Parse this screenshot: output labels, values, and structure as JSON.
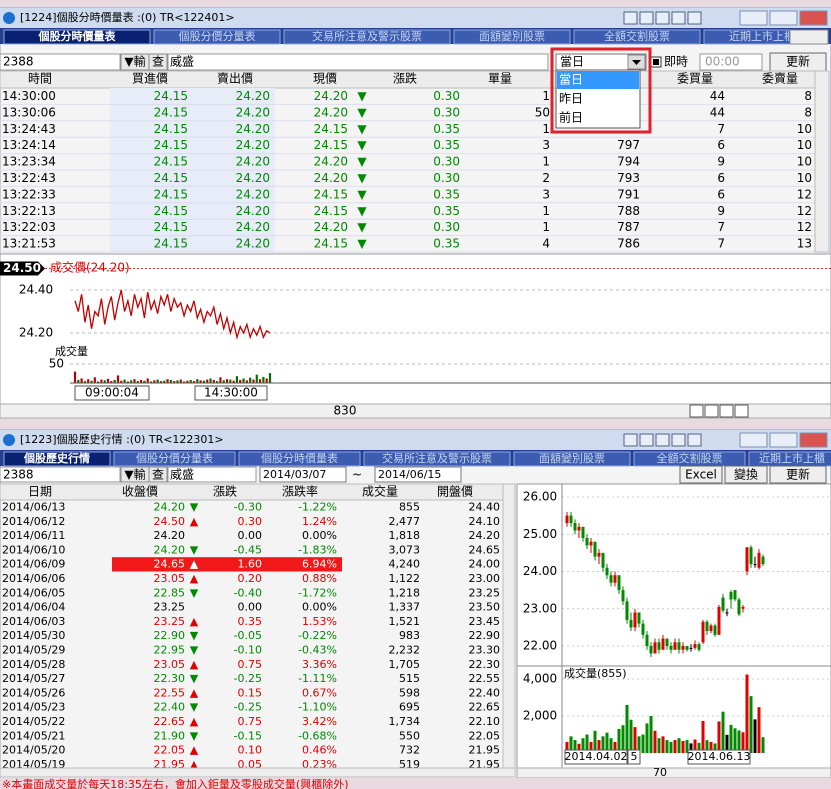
{
  "window1": {
    "title": "[1224]個股分時價量表 :(0) TR<122401>",
    "tabs": [
      "個股分時價量表",
      "個股分價分量表",
      "交易所注意及警示股票",
      "面額變別股票",
      "全額交割股票",
      "近期上市上櫃"
    ],
    "toolbar": {
      "code": "2388",
      "input_button": "▼輸",
      "query_button": "查",
      "name": "威盛",
      "period": "當日",
      "realtime_label": "即時",
      "time": "00:00",
      "refresh_button": "更新"
    },
    "period_options": [
      "當日",
      "昨日",
      "前日"
    ],
    "table": {
      "columns": [
        "時間",
        "買進價",
        "賣出價",
        "現價",
        "漲跌",
        "單量",
        "委買量",
        "委賣量"
      ],
      "rows": [
        [
          "14:30:00",
          "24.15",
          "24.20",
          "24.20",
          "▼",
          "0.30",
          "1",
          null,
          "44",
          "8"
        ],
        [
          "13:30:06",
          "24.15",
          "24.20",
          "24.20",
          "▼",
          "0.30",
          "50",
          null,
          "44",
          "8"
        ],
        [
          "13:24:43",
          "24.15",
          "24.20",
          "24.15",
          "▼",
          "0.35",
          "1",
          null,
          "7",
          "10"
        ],
        [
          "13:24:14",
          "24.15",
          "24.20",
          "24.15",
          "▼",
          "0.35",
          "3",
          "797",
          "6",
          "10"
        ],
        [
          "13:23:34",
          "24.15",
          "24.20",
          "24.20",
          "▼",
          "0.30",
          "1",
          "794",
          "9",
          "10"
        ],
        [
          "13:22:43",
          "24.15",
          "24.20",
          "24.20",
          "▼",
          "0.30",
          "2",
          "793",
          "6",
          "10"
        ],
        [
          "13:22:33",
          "24.15",
          "24.20",
          "24.15",
          "▼",
          "0.35",
          "3",
          "791",
          "6",
          "12"
        ],
        [
          "13:22:13",
          "24.15",
          "24.20",
          "24.15",
          "▼",
          "0.35",
          "1",
          "788",
          "9",
          "12"
        ],
        [
          "13:22:03",
          "24.15",
          "24.20",
          "24.20",
          "▼",
          "0.30",
          "1",
          "787",
          "7",
          "12"
        ],
        [
          "13:21:53",
          "24.15",
          "24.20",
          "24.15",
          "▼",
          "0.35",
          "4",
          "786",
          "7",
          "13"
        ]
      ]
    },
    "chart": {
      "price_tag": {
        "value": 24.5,
        "label": "24.50"
      },
      "price_label": "成交價(24.20)",
      "price_ticks": [
        {
          "value": 24.4,
          "label": "24.40"
        },
        {
          "value": 24.2,
          "label": "24.20"
        }
      ],
      "volume_ticks": [
        50
      ],
      "volume_label": "成交量",
      "x_labels": [
        "09:00:04",
        "14:30:00"
      ],
      "prices": [
        24.35,
        24.3,
        24.38,
        24.25,
        24.33,
        24.22,
        24.3,
        24.28,
        24.36,
        24.24,
        24.32,
        24.37,
        24.26,
        24.34,
        24.4,
        24.3,
        24.35,
        24.28,
        24.38,
        24.32,
        24.36,
        24.27,
        24.39,
        24.31,
        24.35,
        24.29,
        24.37,
        24.33,
        24.38,
        24.3,
        24.36,
        24.32,
        24.34,
        24.28,
        24.33,
        24.3,
        24.35,
        24.27,
        24.31,
        24.25,
        24.3,
        24.28,
        24.32,
        24.24,
        24.29,
        24.22,
        24.27,
        24.2,
        24.25,
        24.18,
        24.23,
        24.2,
        24.24,
        24.18,
        24.22,
        24.19,
        24.23,
        24.18,
        24.21,
        24.2
      ],
      "volumes": [
        30,
        8,
        12,
        5,
        10,
        6,
        15,
        4,
        9,
        7,
        11,
        5,
        8,
        20,
        6,
        9,
        4,
        7,
        10,
        5,
        8,
        6,
        12,
        4,
        7,
        9,
        5,
        6,
        10,
        8,
        5,
        7,
        9,
        4,
        6,
        8,
        5,
        10,
        7,
        6,
        9,
        12,
        8,
        5,
        15,
        7,
        10,
        9,
        6,
        18,
        8,
        12,
        7,
        14,
        9,
        22,
        10,
        16,
        12,
        26
      ]
    },
    "status": "830"
  },
  "window2": {
    "title": "[1223]個股歷史行情 :(0) TR<122301>",
    "tabs": [
      "個股歷史行情",
      "個股分價分量表",
      "個股分時價量表",
      "交易所注意及警示股票",
      "面額變別股票",
      "全額交割股票",
      "近期上市上櫃"
    ],
    "toolbar": {
      "code": "2388",
      "input_button": "▼輸",
      "query_button": "查",
      "name": "威盛",
      "start_date": "2014/03/07",
      "date_separator": "~",
      "end_date": "2014/06/15",
      "buttons": [
        "Excel",
        "變換",
        "更新"
      ]
    },
    "table": {
      "columns": [
        "日期",
        "收盤價",
        "漲跌",
        "漲跌率",
        "成交量",
        "開盤價"
      ],
      "selected_row": 4,
      "rows": [
        [
          "2014/06/13",
          "24.20",
          "▼",
          "-0.30",
          "-1.22%",
          "855",
          "24.40"
        ],
        [
          "2014/06/12",
          "24.50",
          "▲",
          "0.30",
          "1.24%",
          "2,477",
          "24.10"
        ],
        [
          "2014/06/11",
          "24.20",
          null,
          "0.00",
          "0.00%",
          "1,818",
          "24.20"
        ],
        [
          "2014/06/10",
          "24.20",
          "▼",
          "-0.45",
          "-1.83%",
          "3,073",
          "24.65"
        ],
        [
          "2014/06/09",
          "24.65",
          "▲",
          "1.60",
          "6.94%",
          "4,240",
          "24.00"
        ],
        [
          "2014/06/06",
          "23.05",
          "▲",
          "0.20",
          "0.88%",
          "1,122",
          "23.00"
        ],
        [
          "2014/06/05",
          "22.85",
          "▼",
          "-0.40",
          "-1.72%",
          "1,218",
          "23.25"
        ],
        [
          "2014/06/04",
          "23.25",
          null,
          "0.00",
          "0.00%",
          "1,337",
          "23.50"
        ],
        [
          "2014/06/03",
          "23.25",
          "▲",
          "0.35",
          "1.53%",
          "1,521",
          "23.45"
        ],
        [
          "2014/05/30",
          "22.90",
          "▼",
          "-0.05",
          "-0.22%",
          "983",
          "22.90"
        ],
        [
          "2014/05/29",
          "22.95",
          "▼",
          "-0.10",
          "-0.43%",
          "2,232",
          "23.30"
        ],
        [
          "2014/05/28",
          "23.05",
          "▲",
          "0.75",
          "3.36%",
          "1,705",
          "22.30"
        ],
        [
          "2014/05/27",
          "22.30",
          "▼",
          "-0.25",
          "-1.11%",
          "515",
          "22.55"
        ],
        [
          "2014/05/26",
          "22.55",
          "▲",
          "0.15",
          "0.67%",
          "598",
          "22.40"
        ],
        [
          "2014/05/23",
          "22.40",
          "▼",
          "-0.25",
          "-1.10%",
          "695",
          "22.65"
        ],
        [
          "2014/05/22",
          "22.65",
          "▲",
          "0.75",
          "3.42%",
          "1,734",
          "22.10"
        ],
        [
          "2014/05/21",
          "21.90",
          "▼",
          "-0.15",
          "-0.68%",
          "550",
          "22.05"
        ],
        [
          "2014/05/20",
          "22.05",
          "▲",
          "0.10",
          "0.46%",
          "732",
          "21.95"
        ],
        [
          "2014/05/19",
          "21.95",
          "▲",
          "0.05",
          "0.23%",
          "519",
          "21.95"
        ]
      ]
    },
    "chart": {
      "price_ticks": [
        {
          "value": 26,
          "label": "26.00"
        },
        {
          "value": 25,
          "label": "25.00"
        },
        {
          "value": 24,
          "label": "24.00"
        },
        {
          "value": 23,
          "label": "23.00"
        },
        {
          "value": 22,
          "label": "22.00"
        }
      ],
      "volume_label": "成交量(855)",
      "volume_ticks": [
        {
          "value": 4000,
          "label": "4,000"
        },
        {
          "value": 2000,
          "label": "2,000"
        }
      ],
      "x_labels": [
        "2014.04.02",
        "5",
        "2014.06.13"
      ],
      "candles": [
        [
          25.3,
          25.6,
          25.2,
          25.5
        ],
        [
          25.5,
          25.6,
          25.2,
          25.3
        ],
        [
          25.3,
          25.4,
          25.0,
          25.1
        ],
        [
          25.1,
          25.3,
          24.9,
          25.2
        ],
        [
          25.2,
          25.2,
          24.8,
          24.9
        ],
        [
          24.9,
          25.0,
          24.6,
          24.7
        ],
        [
          24.7,
          24.9,
          24.5,
          24.8
        ],
        [
          24.8,
          24.8,
          24.3,
          24.4
        ],
        [
          24.4,
          24.6,
          24.2,
          24.5
        ],
        [
          24.5,
          24.5,
          24.0,
          24.1
        ],
        [
          24.1,
          24.2,
          23.8,
          23.9
        ],
        [
          23.9,
          24.0,
          23.6,
          23.7
        ],
        [
          23.7,
          24.0,
          23.6,
          23.9
        ],
        [
          23.9,
          23.9,
          23.4,
          23.5
        ],
        [
          23.5,
          23.6,
          23.1,
          23.2
        ],
        [
          23.2,
          23.3,
          22.6,
          22.7
        ],
        [
          22.7,
          22.9,
          22.4,
          22.5
        ],
        [
          22.5,
          23.0,
          22.4,
          22.9
        ],
        [
          22.9,
          22.9,
          22.5,
          22.6
        ],
        [
          22.6,
          22.7,
          22.2,
          22.3
        ],
        [
          22.3,
          22.4,
          21.9,
          22.0
        ],
        [
          22.0,
          22.1,
          21.7,
          21.8
        ],
        [
          21.8,
          22.2,
          21.8,
          22.1
        ],
        [
          22.1,
          22.2,
          21.8,
          21.9
        ],
        [
          21.9,
          22.3,
          21.9,
          22.2
        ],
        [
          22.2,
          22.2,
          21.9,
          22.0
        ],
        [
          22.0,
          22.1,
          21.8,
          21.9
        ],
        [
          21.9,
          22.2,
          21.9,
          22.1
        ],
        [
          22.1,
          22.2,
          21.8,
          21.9
        ],
        [
          21.9,
          22.1,
          21.8,
          22.0
        ],
        [
          22.0,
          22.0,
          21.85,
          21.9
        ],
        [
          21.95,
          22.05,
          21.85,
          21.95
        ],
        [
          21.95,
          22.15,
          21.9,
          22.05
        ],
        [
          22.05,
          22.1,
          21.85,
          21.9
        ],
        [
          22.1,
          22.7,
          22.05,
          22.65
        ],
        [
          22.65,
          22.7,
          22.3,
          22.4
        ],
        [
          22.4,
          22.6,
          22.35,
          22.55
        ],
        [
          22.55,
          22.6,
          22.25,
          22.3
        ],
        [
          22.3,
          23.1,
          22.3,
          23.05
        ],
        [
          23.3,
          23.4,
          22.9,
          22.95
        ],
        [
          22.9,
          23.0,
          22.8,
          22.9
        ],
        [
          23.45,
          23.5,
          23.0,
          23.25
        ],
        [
          23.5,
          23.5,
          23.2,
          23.25
        ],
        [
          23.25,
          23.3,
          22.8,
          22.85
        ],
        [
          23.0,
          23.1,
          22.9,
          23.05
        ],
        [
          24.0,
          24.65,
          23.9,
          24.65
        ],
        [
          24.65,
          24.7,
          24.1,
          24.2
        ],
        [
          24.2,
          24.4,
          24.1,
          24.2
        ],
        [
          24.1,
          24.6,
          24.05,
          24.5
        ],
        [
          24.4,
          24.45,
          24.15,
          24.2
        ]
      ],
      "volumes": [
        600,
        900,
        700,
        500,
        800,
        1000,
        600,
        1200,
        700,
        900,
        1100,
        800,
        600,
        1300,
        1500,
        2600,
        1800,
        1400,
        900,
        1000,
        1600,
        2000,
        1200,
        800,
        900,
        700,
        600,
        700,
        800,
        650,
        700,
        519,
        732,
        550,
        1734,
        695,
        598,
        515,
        1705,
        2232,
        983,
        1521,
        1337,
        1218,
        1122,
        4240,
        3073,
        1818,
        2477,
        855
      ]
    },
    "status": "70",
    "footer": "※本畫面成交量於每天18:35左右，會加入鉅量及零股成交量(興櫃除外)"
  }
}
